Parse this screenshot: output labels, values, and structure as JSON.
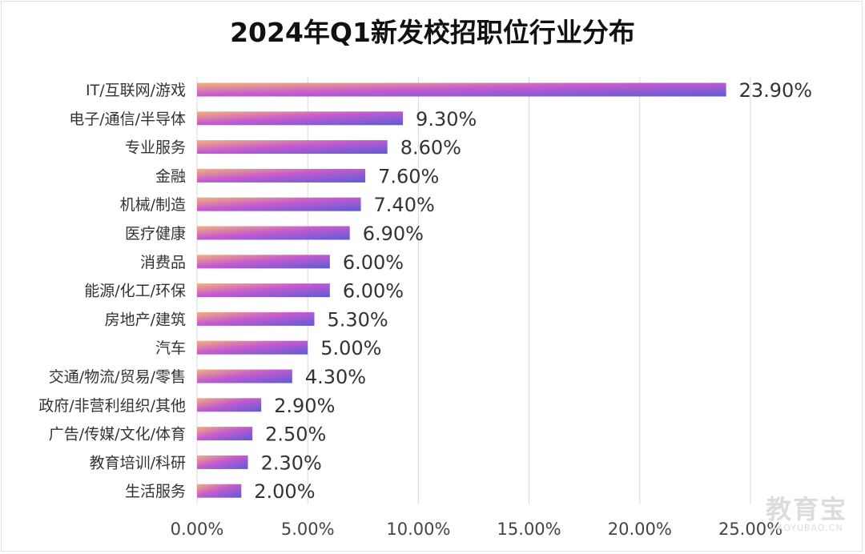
{
  "chart_data": {
    "type": "bar",
    "orientation": "horizontal",
    "title": "2024年Q1新发校招职位行业分布",
    "categories": [
      "IT/互联网/游戏",
      "电子/通信/半导体",
      "专业服务",
      "金融",
      "机械/制造",
      "医疗健康",
      "消费品",
      "能源/化工/环保",
      "房地产/建筑",
      "汽车",
      "交通/物流/贸易/零售",
      "政府/非营利组织/其他",
      "广告/传媒/文化/体育",
      "教育培训/科研",
      "生活服务"
    ],
    "values": [
      23.9,
      9.3,
      8.6,
      7.6,
      7.4,
      6.9,
      6.0,
      6.0,
      5.3,
      5.0,
      4.3,
      2.9,
      2.5,
      2.3,
      2.0
    ],
    "value_labels": [
      "23.90%",
      "9.30%",
      "8.60%",
      "7.60%",
      "7.40%",
      "6.90%",
      "6.00%",
      "6.00%",
      "5.30%",
      "5.00%",
      "4.30%",
      "2.90%",
      "2.50%",
      "2.30%",
      "2.00%"
    ],
    "xlim": [
      0,
      25
    ],
    "xticks": [
      0,
      5,
      10,
      15,
      20,
      25
    ],
    "xtick_labels": [
      "0.00%",
      "5.00%",
      "10.00%",
      "15.00%",
      "20.00%",
      "25.00%"
    ],
    "xlabel": "",
    "ylabel": "",
    "grid": true,
    "legend": "none",
    "colors": {
      "bar_gradient_start": "#F3B27A",
      "bar_gradient_mid": "#C65BCF",
      "bar_gradient_end": "#5B5BD6",
      "grid": "#D9D9D9",
      "text": "#333333"
    }
  },
  "watermark": {
    "main": "教育宝",
    "sub": "JIAOYUBAO.CN"
  }
}
